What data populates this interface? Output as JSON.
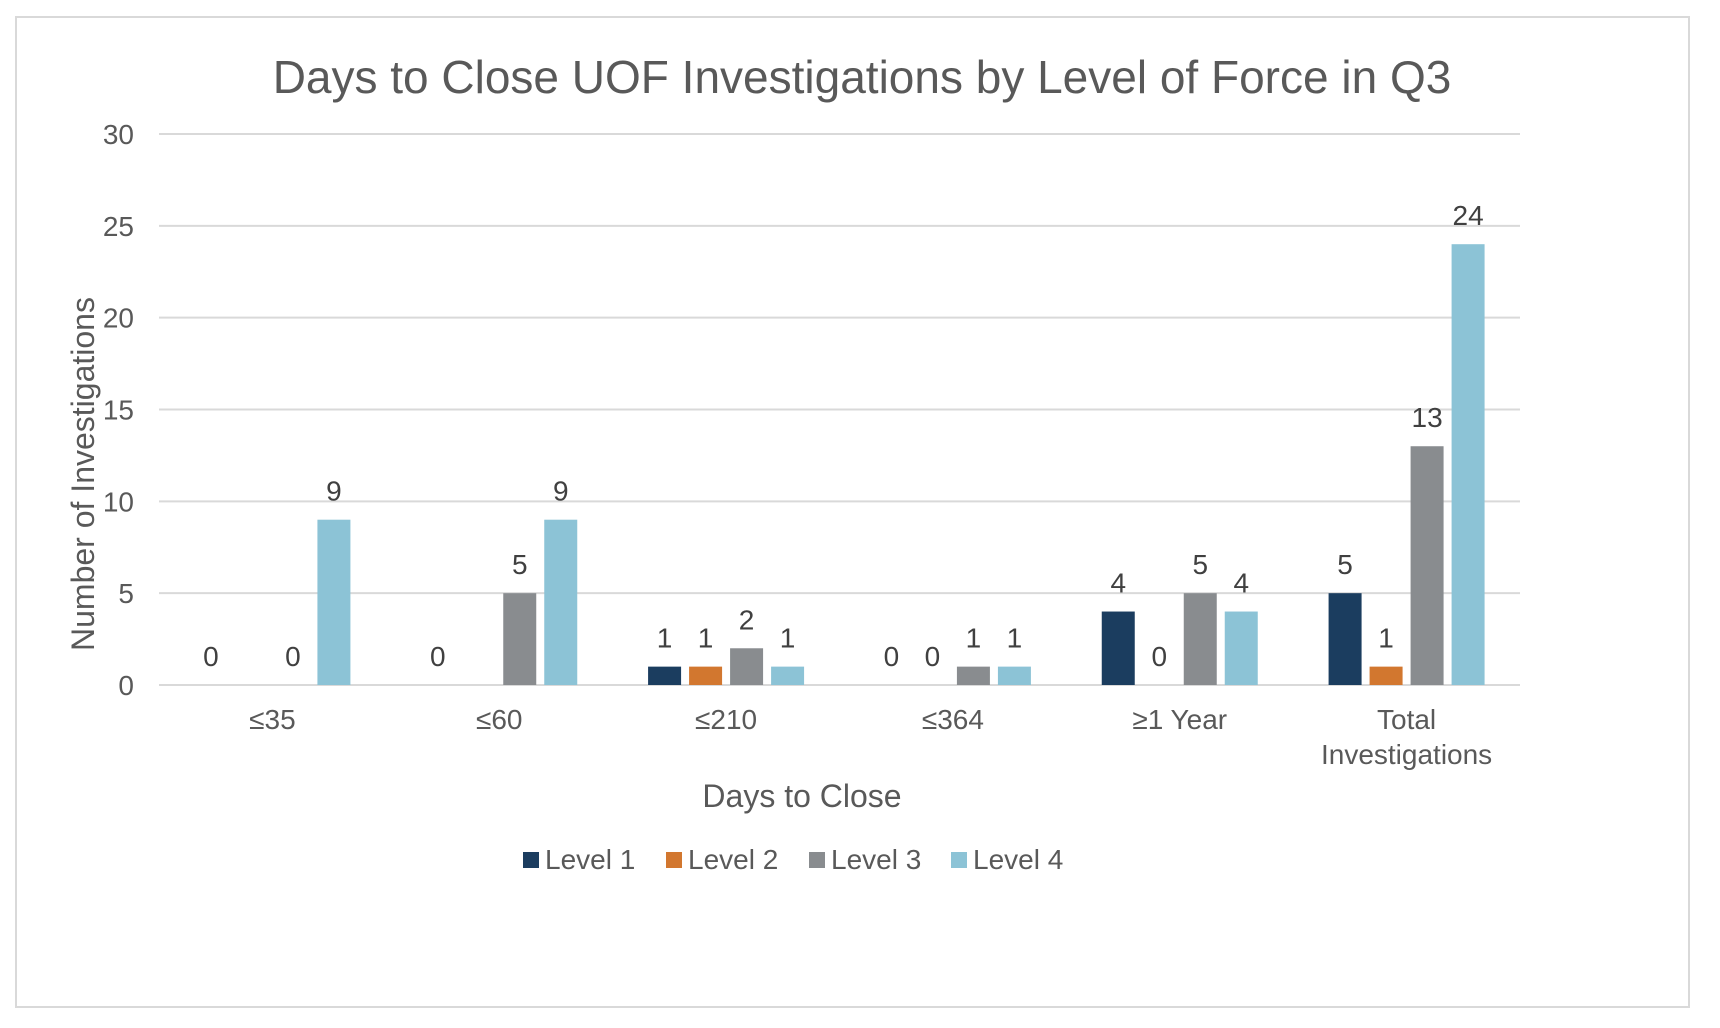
{
  "chart_data": {
    "type": "bar",
    "title": "Days to Close UOF Investigations by Level of Force in Q3",
    "xlabel": "Days to Close",
    "ylabel": "Number of Investigations",
    "ylim": [
      0,
      30
    ],
    "yticks": [
      0,
      5,
      10,
      15,
      20,
      25,
      30
    ],
    "grid": true,
    "legend_position": "bottom",
    "categories": [
      [
        "≤35"
      ],
      [
        "≤60"
      ],
      [
        "≤210"
      ],
      [
        "≤364"
      ],
      [
        "≥1 Year"
      ],
      [
        "Total",
        "Investigations"
      ]
    ],
    "series": [
      {
        "name": "Level 1",
        "color": "#1b3d5f",
        "values": [
          0,
          0,
          1,
          0,
          4,
          5
        ]
      },
      {
        "name": "Level 2",
        "color": "#d2772f",
        "values": [
          null,
          null,
          1,
          0,
          0,
          1
        ]
      },
      {
        "name": "Level 3",
        "color": "#898c8f",
        "values": [
          0,
          5,
          2,
          1,
          5,
          13
        ]
      },
      {
        "name": "Level 4",
        "color": "#8cc3d6",
        "values": [
          9,
          9,
          1,
          1,
          4,
          24
        ]
      }
    ]
  }
}
